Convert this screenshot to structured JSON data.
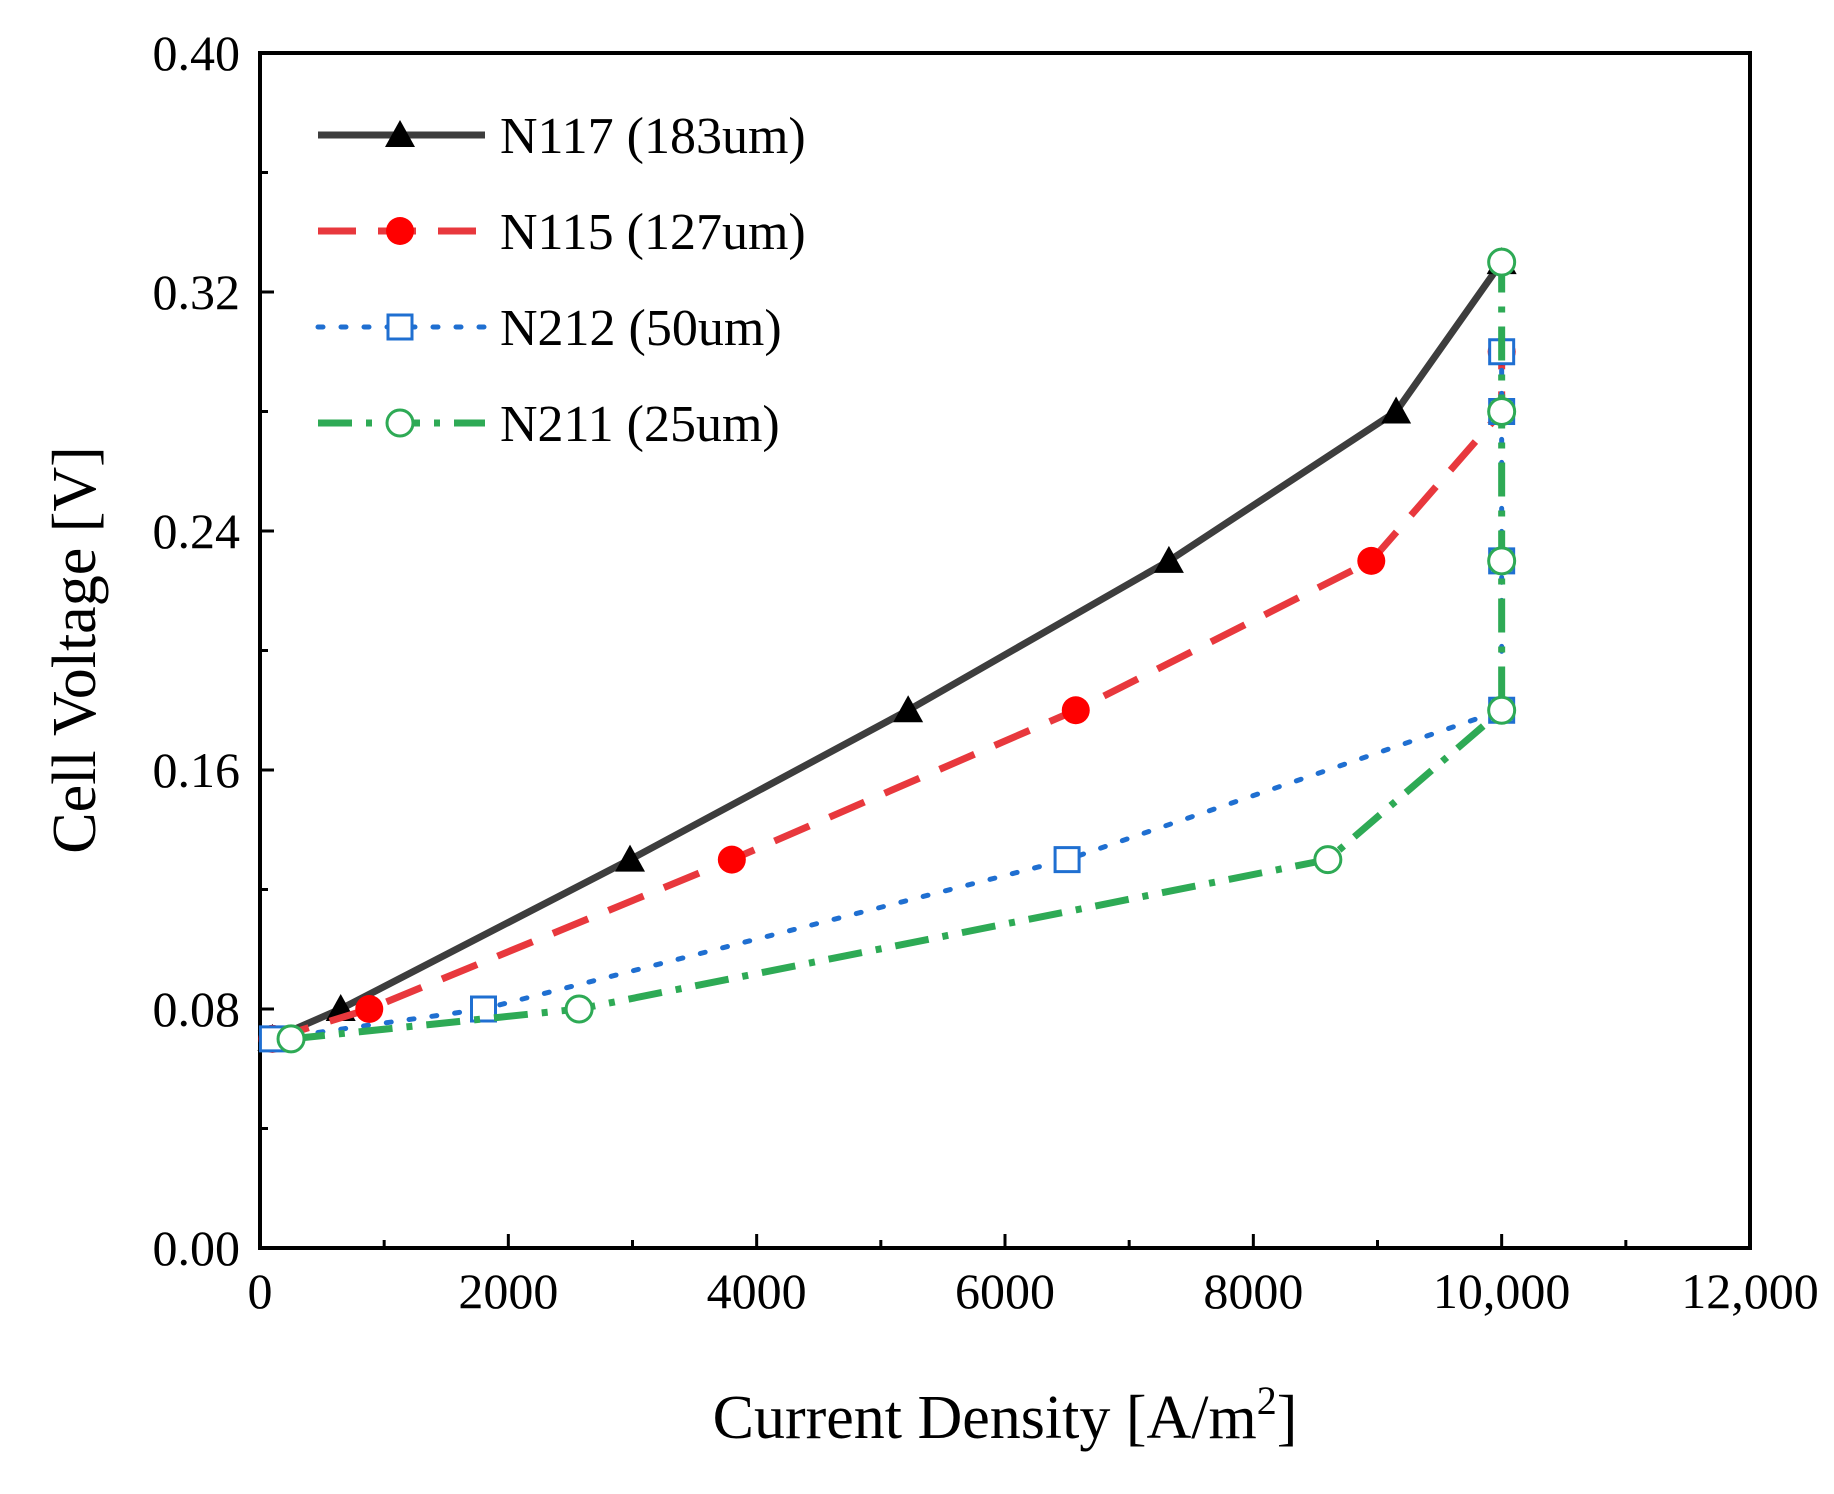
{
  "chart_data": {
    "type": "line",
    "title": "",
    "xlabel": "Current Density [A/m",
    "xlabel_superscript": "2",
    "xlabel_suffix": "]",
    "ylabel": "Cell Voltage [V]",
    "xlim": [
      0,
      12000
    ],
    "ylim": [
      0,
      0.4
    ],
    "x_ticks": [
      0,
      2000,
      4000,
      6000,
      8000,
      10000,
      12000
    ],
    "x_tick_labels": [
      "0",
      "2000",
      "4000",
      "6000",
      "8000",
      "10,000",
      "12,000"
    ],
    "y_ticks": [
      0,
      0.08,
      0.16,
      0.24,
      0.32,
      0.4
    ],
    "y_tick_labels": [
      "0.00",
      "0.08",
      "0.16",
      "0.24",
      "0.32",
      "0.40"
    ],
    "grid": false,
    "legend_position": "top-left",
    "series": [
      {
        "name": "N117 (183um)",
        "color": "#3d3d3d",
        "dash": "solid",
        "marker": "filled-triangle",
        "marker_color": "#000000",
        "points": [
          [
            100,
            0.07
          ],
          [
            650,
            0.08
          ],
          [
            2980,
            0.13
          ],
          [
            5220,
            0.18
          ],
          [
            7320,
            0.23
          ],
          [
            9150,
            0.28
          ],
          [
            10000,
            0.33
          ]
        ]
      },
      {
        "name": "N115 (127um)",
        "color": "#e8383d",
        "dash": "dashed",
        "marker": "filled-circle",
        "marker_color": "#ff0000",
        "points": [
          [
            100,
            0.07
          ],
          [
            880,
            0.08
          ],
          [
            3800,
            0.13
          ],
          [
            6570,
            0.18
          ],
          [
            8950,
            0.23
          ],
          [
            10000,
            0.28
          ],
          [
            10000,
            0.3
          ]
        ]
      },
      {
        "name": "N212 (50um)",
        "color": "#1f6fd1",
        "dash": "dotted",
        "marker": "open-square",
        "marker_color": "#1f6fd1",
        "points": [
          [
            100,
            0.07
          ],
          [
            1800,
            0.08
          ],
          [
            6500,
            0.13
          ],
          [
            10000,
            0.18
          ],
          [
            10000,
            0.23
          ],
          [
            10000,
            0.28
          ],
          [
            10000,
            0.3
          ]
        ]
      },
      {
        "name": "N211 (25um)",
        "color": "#2eaa55",
        "dash": "dash-dot",
        "marker": "open-circle",
        "marker_color": "#2eaa55",
        "points": [
          [
            250,
            0.07
          ],
          [
            2570,
            0.08
          ],
          [
            8600,
            0.13
          ],
          [
            10000,
            0.18
          ],
          [
            10000,
            0.23
          ],
          [
            10000,
            0.28
          ],
          [
            10000,
            0.33
          ]
        ]
      }
    ]
  }
}
